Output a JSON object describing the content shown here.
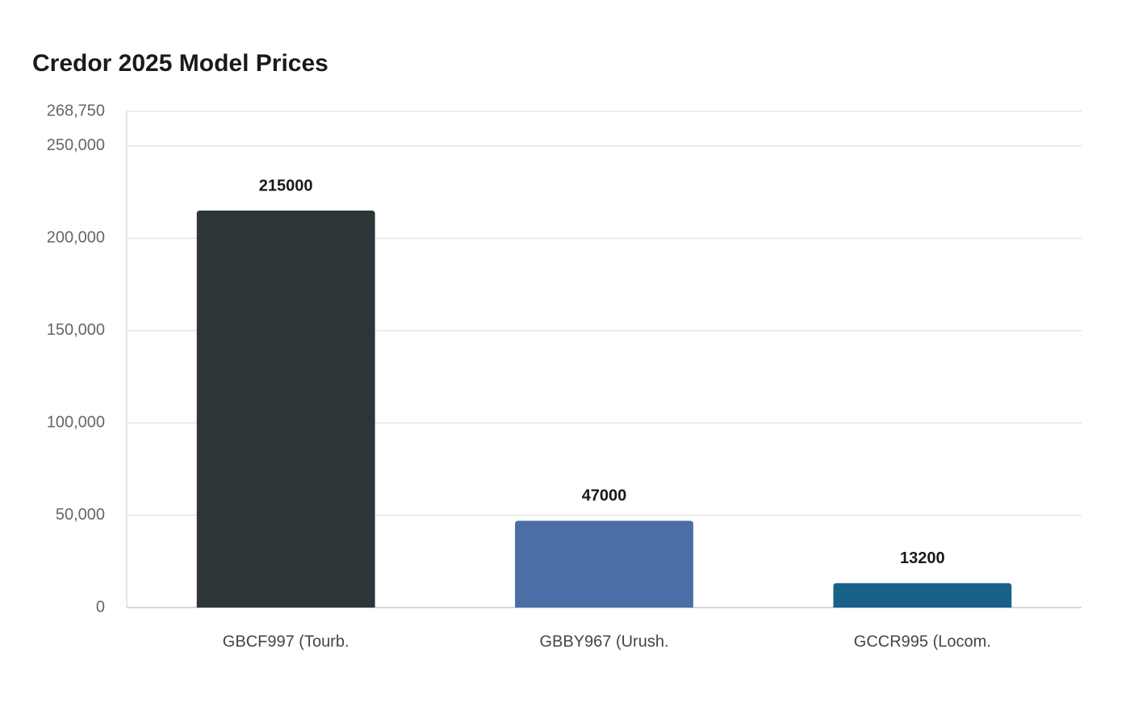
{
  "chart_data": {
    "type": "bar",
    "title": "Credor 2025 Model Prices",
    "categories": [
      "GBCF997 (Tourb.",
      "GBBY967 (Urush.",
      "GCCR995 (Locom."
    ],
    "values": [
      215000,
      47000,
      13200
    ],
    "colors": [
      "#2e3538",
      "#4a6ea5",
      "#1a6189"
    ],
    "ylim": [
      0,
      268750
    ],
    "yticks": [
      {
        "value": 0,
        "label": "0"
      },
      {
        "value": 50000,
        "label": "50,000"
      },
      {
        "value": 100000,
        "label": "100,000"
      },
      {
        "value": 150000,
        "label": "150,000"
      },
      {
        "value": 200000,
        "label": "200,000"
      },
      {
        "value": 250000,
        "label": "250,000"
      },
      {
        "value": 268750,
        "label": "268,750"
      }
    ],
    "grid": true
  }
}
